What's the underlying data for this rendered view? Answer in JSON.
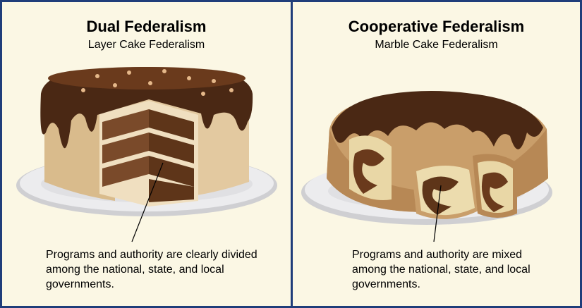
{
  "left_panel": {
    "title": "Dual Federalism",
    "subtitle": "Layer Cake Federalism",
    "caption": "Programs and authority are clearly divided among the national, state, and local governments."
  },
  "right_panel": {
    "title": "Cooperative Federalism",
    "subtitle": "Marble Cake Federalism",
    "caption": "Programs and authority are mixed among the national, state, and local governments."
  },
  "colors": {
    "border": "#1f3d7a",
    "background": "#fbf7e4",
    "chocolate": "#4a2814",
    "cake_cream": "#e3c9a0",
    "layer_brown": "#7a4a2a",
    "plate": "#e9e9ea"
  },
  "illustrations": {
    "left": "layer-cake-icon",
    "right": "marble-bundt-cake-icon"
  }
}
